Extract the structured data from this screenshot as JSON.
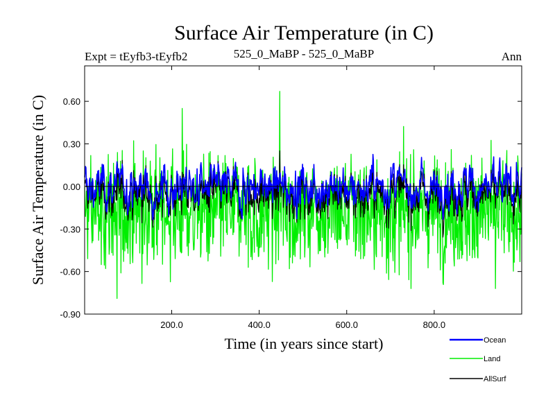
{
  "chart_data": {
    "type": "line",
    "title": "Surface Air Temperature (in C)",
    "subtitle_left": "Expt = tEyfb3-tEyfb2",
    "subtitle_center": "525_0_MaBP - 525_0_MaBP",
    "subtitle_right": "Ann",
    "xlabel": "Time (in years since start)",
    "ylabel": "Surface Air Temperature (in C)",
    "xlim": [
      1,
      1000
    ],
    "ylim": [
      -0.9,
      0.85
    ],
    "xticks": [
      200,
      400,
      600,
      800
    ],
    "xtick_labels": [
      "200.0",
      "400.0",
      "600.0",
      "800.0"
    ],
    "yticks": [
      -0.9,
      -0.6,
      -0.3,
      0.0,
      0.3,
      0.6
    ],
    "ytick_labels": [
      "-0.90",
      "-0.60",
      "-0.30",
      "0.00",
      "0.30",
      "0.60"
    ],
    "zero_line": true,
    "grid": false,
    "legend_position": "below-right",
    "series": [
      {
        "name": "Ocean",
        "color": "#0000ff",
        "mean": 0.0,
        "amplitude": 0.08,
        "min_approx": -0.3,
        "max_approx": 0.25
      },
      {
        "name": "Land",
        "color": "#00ee00",
        "mean": -0.18,
        "amplitude": 0.2,
        "min_approx": -0.79,
        "max_approx": 0.67,
        "notable_points": [
          {
            "x": 224,
            "y": 0.55
          },
          {
            "x": 447,
            "y": 0.67
          },
          {
            "x": 75,
            "y": -0.79
          },
          {
            "x": 940,
            "y": -0.72
          }
        ]
      },
      {
        "name": "AllSurf",
        "color": "#000000",
        "mean": -0.03,
        "amplitude": 0.09,
        "min_approx": -0.3,
        "max_approx": 0.2
      }
    ]
  }
}
